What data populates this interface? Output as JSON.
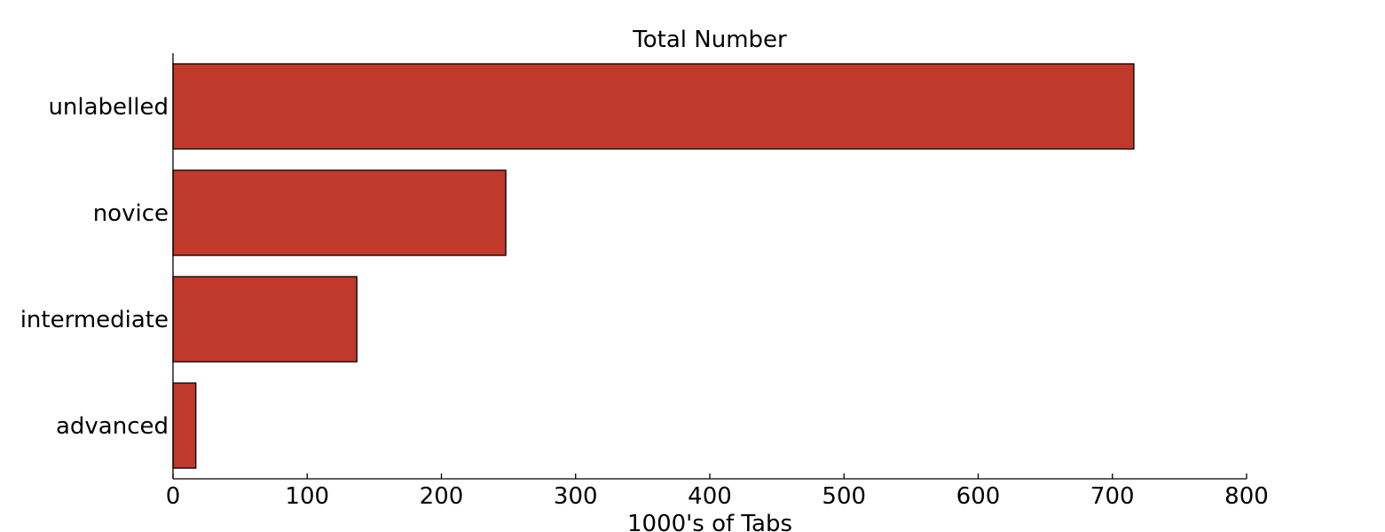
{
  "chart_data": {
    "type": "bar",
    "orientation": "horizontal",
    "title": "Total Number",
    "xlabel": "1000's of Tabs",
    "ylabel": "",
    "categories": [
      "advanced",
      "intermediate",
      "novice",
      "unlabelled"
    ],
    "values": [
      17,
      137,
      248,
      716
    ],
    "xlim": [
      0,
      800
    ],
    "xticks": [
      0,
      100,
      200,
      300,
      400,
      500,
      600,
      700,
      800
    ],
    "bar_color": "#c0392b",
    "edge_color": "#000000",
    "grid": false,
    "legend": "none"
  }
}
